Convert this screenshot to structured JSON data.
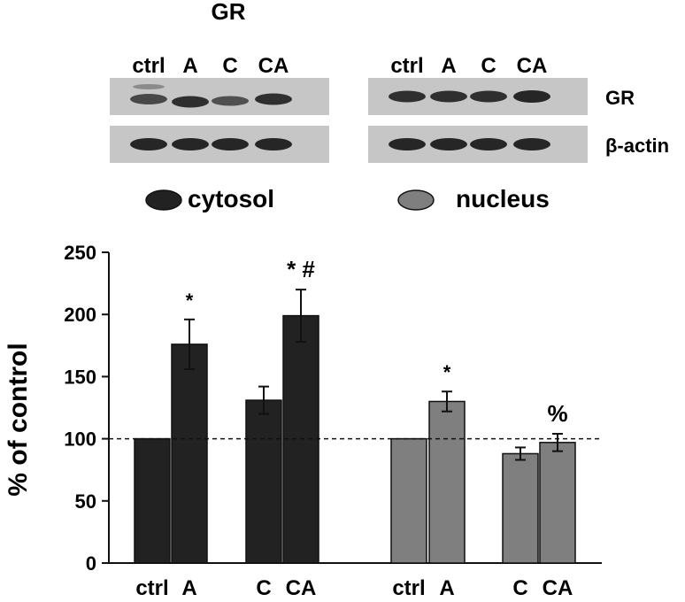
{
  "title": "GR",
  "blot": {
    "lane_labels": [
      "ctrl",
      "A",
      "C",
      "CA"
    ],
    "row_labels": [
      "GR",
      "β-actin"
    ],
    "panels": [
      "cytosol",
      "nucleus"
    ],
    "colors": {
      "background": "#c6c6c6",
      "band": "#1e1e1e"
    }
  },
  "legend": [
    {
      "name": "cytosol",
      "color": "#222222"
    },
    {
      "name": "nucleus",
      "color": "#7f7f7f"
    }
  ],
  "chart_data": {
    "type": "bar",
    "ylabel": "% of control",
    "ylim": [
      0,
      250
    ],
    "yticks": [
      0,
      50,
      100,
      150,
      200,
      250
    ],
    "reference_line": 100,
    "groups": [
      {
        "name": "cytosol",
        "color": "#222222",
        "categories": [
          "ctrl",
          "A",
          "C",
          "CA"
        ],
        "values": [
          100,
          176,
          131,
          199
        ],
        "errors": [
          0,
          20,
          11,
          21
        ],
        "annotations": [
          "",
          "*",
          "",
          "* #"
        ]
      },
      {
        "name": "nucleus",
        "color": "#7f7f7f",
        "categories": [
          "ctrl",
          "A",
          "C",
          "CA"
        ],
        "values": [
          100,
          130,
          88,
          97
        ],
        "errors": [
          0,
          8,
          5,
          7
        ],
        "annotations": [
          "",
          "*",
          "",
          "%"
        ]
      }
    ]
  }
}
